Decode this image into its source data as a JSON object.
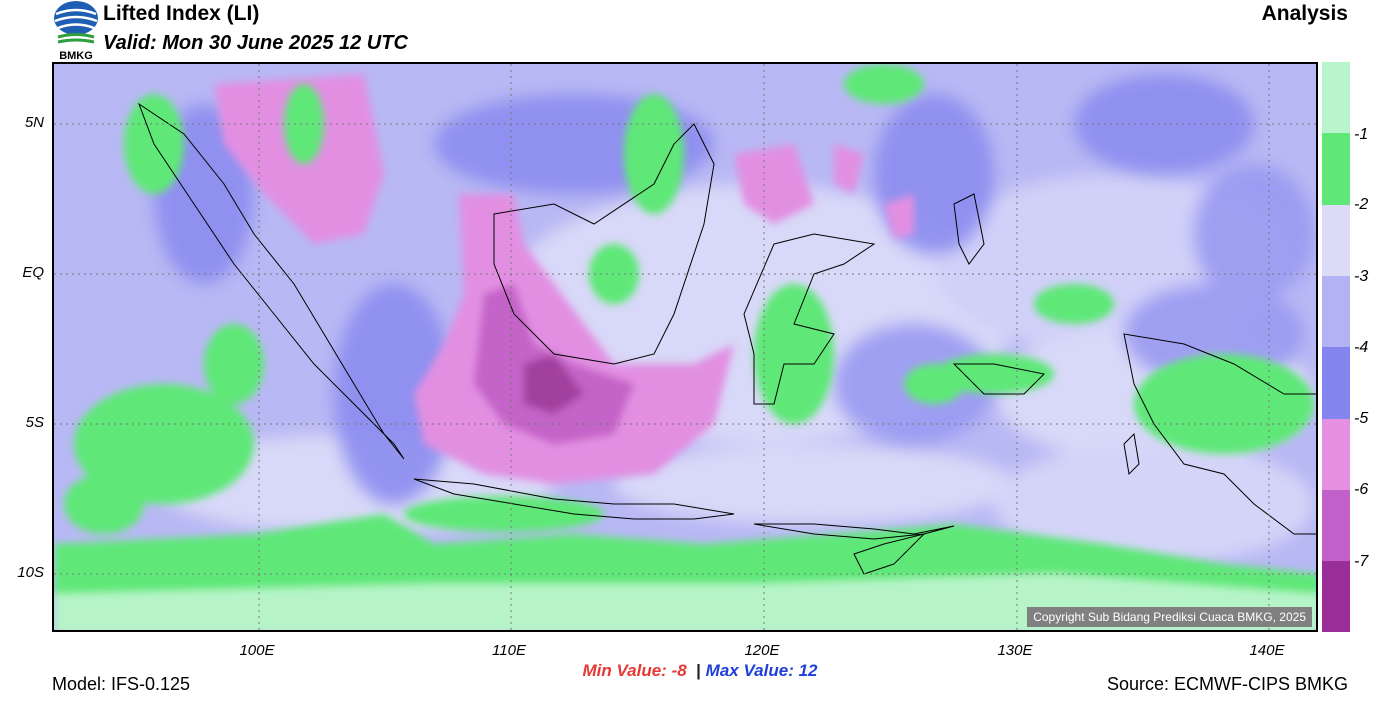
{
  "header": {
    "logo_text": "BMKG",
    "title": "Lifted Index (LI)",
    "subtitle": "Valid: Mon 30 June 2025 12 UTC",
    "analysis_label": "Analysis"
  },
  "map": {
    "y_ticks": [
      "5N",
      "EQ",
      "5S",
      "10S"
    ],
    "x_ticks": [
      "100E",
      "110E",
      "120E",
      "130E",
      "140E"
    ],
    "copyright": "Copyright Sub Bidang Prediksi Cuaca BMKG, 2025"
  },
  "colorbar": {
    "labels": [
      "-1",
      "-2",
      "-3",
      "-4",
      "-5",
      "-6",
      "-7"
    ],
    "colors": [
      "#b8f5cc",
      "#5fe878",
      "#dcdcf8",
      "#b2b2f5",
      "#8585f0",
      "#e690e4",
      "#c060c8",
      "#9a2e98"
    ]
  },
  "stats": {
    "min_label": "Min Value:",
    "min_value": "-8",
    "separator": "|",
    "max_label": "Max Value:",
    "max_value": "12"
  },
  "footer": {
    "model": "Model: IFS-0.125",
    "source": "Source: ECMWF-CIPS BMKG"
  }
}
